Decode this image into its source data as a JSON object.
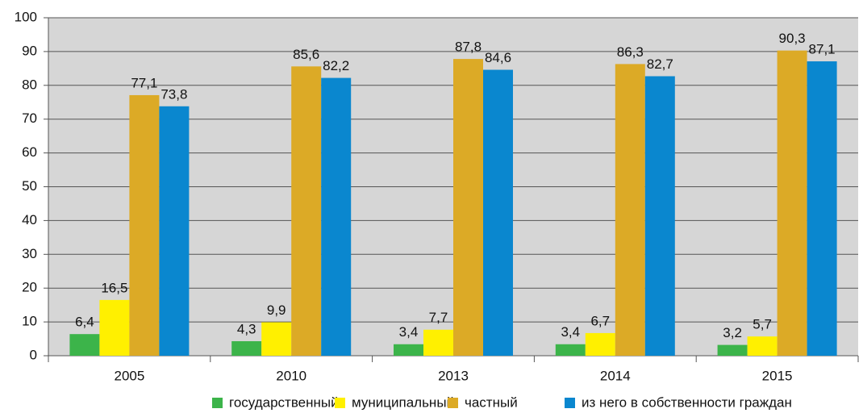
{
  "chart_data": {
    "type": "bar",
    "categories": [
      "2005",
      "2010",
      "2013",
      "2014",
      "2015"
    ],
    "series": [
      {
        "name": "государственный",
        "color": "#3cb44a",
        "values": [
          6.4,
          4.3,
          3.4,
          3.4,
          3.2
        ],
        "value_labels": [
          "6,4",
          "4,3",
          "3,4",
          "3,4",
          "3,2"
        ]
      },
      {
        "name": "муниципальный",
        "color": "#fff000",
        "values": [
          16.5,
          9.9,
          7.7,
          6.7,
          5.7
        ],
        "value_labels": [
          "16,5",
          "9,9",
          "7,7",
          "6,7",
          "5,7"
        ]
      },
      {
        "name": "частный",
        "color": "#dcaa26",
        "values": [
          77.1,
          85.6,
          87.8,
          86.3,
          90.3
        ],
        "value_labels": [
          "77,1",
          "85,6",
          "87,8",
          "86,3",
          "90,3"
        ]
      },
      {
        "name": "из него в собственности граждан",
        "color": "#0a87cf",
        "values": [
          73.8,
          82.2,
          84.6,
          82.7,
          87.1
        ],
        "value_labels": [
          "73,8",
          "82,2",
          "84,6",
          "82,7",
          "87,1"
        ]
      }
    ],
    "ylim": [
      0,
      100
    ],
    "yticks": [
      0,
      10,
      20,
      30,
      40,
      50,
      60,
      70,
      80,
      90,
      100
    ],
    "grid": true
  }
}
